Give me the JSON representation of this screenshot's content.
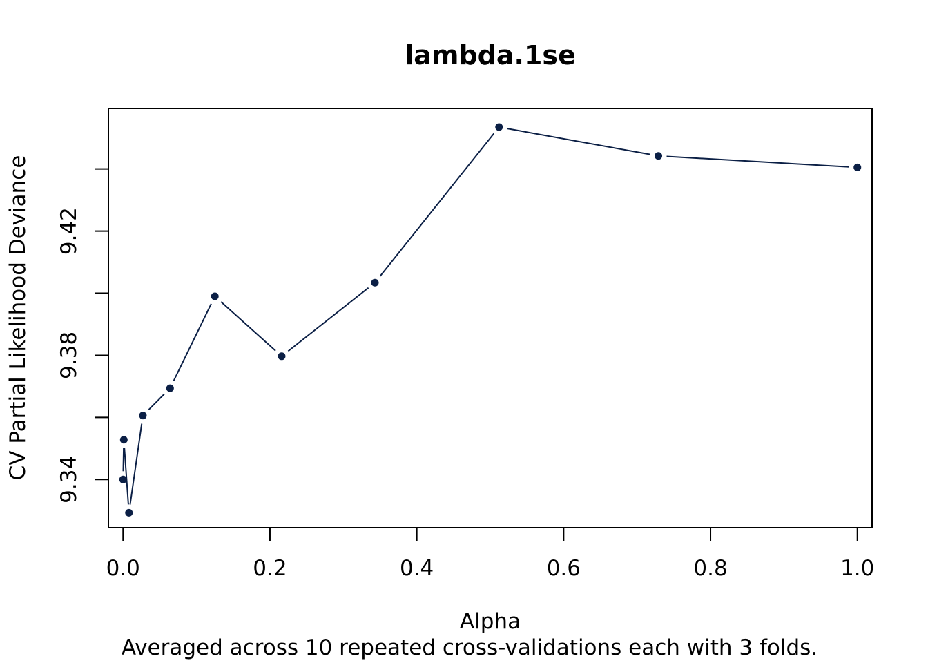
{
  "chart_data": {
    "type": "line",
    "title": "lambda.1se",
    "xlabel": "Alpha",
    "ylabel": "CV Partial Likelihood Deviance",
    "subtitle": "Averaged across 10 repeated cross-validations each with 3 folds.",
    "xlim": [
      -0.02,
      1.02
    ],
    "ylim": [
      9.3245,
      9.4595
    ],
    "x_ticks": [
      0.0,
      0.2,
      0.4,
      0.6,
      0.8,
      1.0
    ],
    "x_tick_labels": [
      "0.0",
      "0.2",
      "0.4",
      "0.6",
      "0.8",
      "1.0"
    ],
    "y_ticks": [
      9.34,
      9.36,
      9.38,
      9.4,
      9.42,
      9.44
    ],
    "y_tick_labels": [
      "9.34",
      "",
      "9.38",
      "",
      "9.42",
      ""
    ],
    "series": [
      {
        "color": "#0b1f45",
        "points": [
          {
            "x": 0.0,
            "y": 9.34
          },
          {
            "x": 0.001,
            "y": 9.3528
          },
          {
            "x": 0.008,
            "y": 9.3293
          },
          {
            "x": 0.027,
            "y": 9.3606
          },
          {
            "x": 0.064,
            "y": 9.3694
          },
          {
            "x": 0.125,
            "y": 9.399
          },
          {
            "x": 0.216,
            "y": 9.3797
          },
          {
            "x": 0.343,
            "y": 9.4034
          },
          {
            "x": 0.512,
            "y": 9.4535
          },
          {
            "x": 0.729,
            "y": 9.4442
          },
          {
            "x": 1.0,
            "y": 9.4405
          }
        ]
      }
    ],
    "grid": false,
    "legend": "none"
  }
}
